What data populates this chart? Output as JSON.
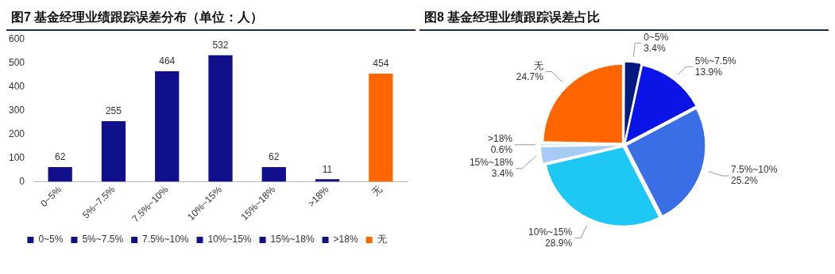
{
  "chart_data": [
    {
      "type": "bar",
      "title": "图7  基金经理业绩跟踪误差分布（单位：人）",
      "categories": [
        "0~5%",
        "5%~7.5%",
        "7.5%~10%",
        "10%~15%",
        "15%~18%",
        ">18%",
        "无"
      ],
      "stacked": true,
      "series": [
        {
          "name": "0~5%",
          "color": "#10108c",
          "values": [
            62,
            null,
            null,
            null,
            null,
            null,
            null
          ]
        },
        {
          "name": "5%~7.5%",
          "color": "#10108c",
          "values": [
            null,
            255,
            null,
            null,
            null,
            null,
            null
          ]
        },
        {
          "name": "7.5%~10%",
          "color": "#10108c",
          "values": [
            null,
            null,
            464,
            null,
            null,
            null,
            null
          ]
        },
        {
          "name": "10%~15%",
          "color": "#10108c",
          "values": [
            null,
            null,
            null,
            532,
            null,
            null,
            null
          ]
        },
        {
          "name": "15%~18%",
          "color": "#10108c",
          "values": [
            null,
            null,
            null,
            null,
            62,
            null,
            null
          ]
        },
        {
          "name": ">18%",
          "color": "#10108c",
          "values": [
            null,
            null,
            null,
            null,
            null,
            11,
            null
          ]
        },
        {
          "name": "无",
          "color": "#ff6600",
          "values": [
            null,
            null,
            null,
            null,
            null,
            null,
            454
          ]
        }
      ],
      "ylim": [
        0,
        600
      ],
      "yticks": [
        0,
        100,
        200,
        300,
        400,
        500,
        600
      ],
      "grid": false,
      "legend": "bottom",
      "data_labels": true
    },
    {
      "type": "pie",
      "title": "图8  基金经理业绩跟踪误差占比",
      "categories": [
        "0~5%",
        "5%~7.5%",
        "7.5%~10%",
        "10%~15%",
        "15%~18%",
        ">18%",
        "无"
      ],
      "values": [
        3.4,
        13.9,
        25.2,
        28.9,
        3.4,
        0.6,
        24.7
      ],
      "value_labels": [
        "3.4%",
        "13.9%",
        "25.2%",
        "28.9%",
        "3.4%",
        "0.6%",
        "24.7%"
      ],
      "colors": [
        "#001a80",
        "#0a14e6",
        "#3a6ee6",
        "#1ec8f5",
        "#a6ccf5",
        "#d8ecf8",
        "#ff6600"
      ],
      "legend": false
    }
  ]
}
